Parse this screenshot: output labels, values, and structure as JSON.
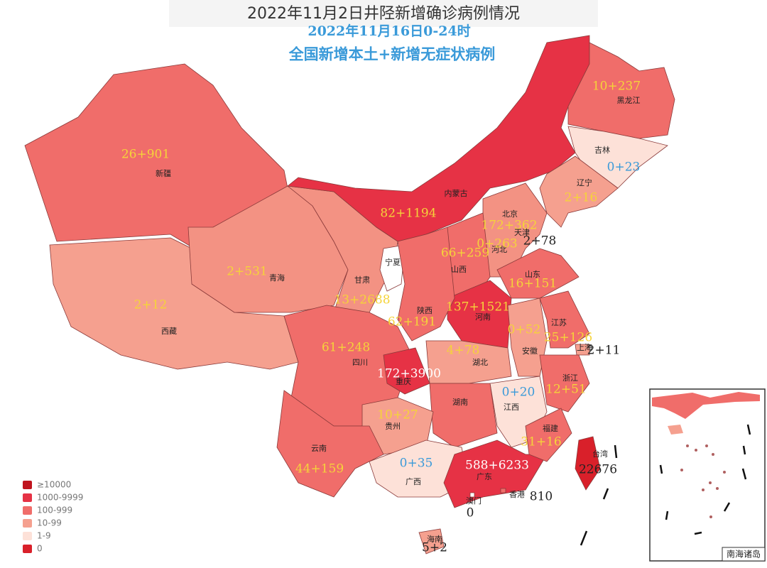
{
  "header": {
    "title": "2022年11月2日井陉新增确诊病例情况"
  },
  "map": {
    "date": "2022年11月16日0-24时",
    "subtitle": "全国新增本土+新增无症状病例",
    "inset_label": "南海诸岛",
    "legend": [
      {
        "label": "≥10000",
        "color": "#c0141e"
      },
      {
        "label": "1000-9999",
        "color": "#e63245"
      },
      {
        "label": "100-999",
        "color": "#f06d6a"
      },
      {
        "label": "10-99",
        "color": "#f5a08f"
      },
      {
        "label": "1-9",
        "color": "#fde1d8"
      },
      {
        "label": "0",
        "color": "#d9202a"
      }
    ],
    "provinces": [
      {
        "name": "新疆",
        "value": "26+901",
        "color": "#f06d6a",
        "label_color": "#f5d33a"
      },
      {
        "name": "西藏",
        "value": "2+12",
        "color": "#f5a08f",
        "label_color": "#f5d33a"
      },
      {
        "name": "青海",
        "value": "2+531",
        "color": "#f39283",
        "label_color": "#f5d33a"
      },
      {
        "name": "甘肃",
        "value": "13+2688",
        "color": "#f39283",
        "label_color": "#f5d33a"
      },
      {
        "name": "宁夏",
        "color": "#ffffff"
      },
      {
        "name": "内蒙古",
        "value": "82+1194",
        "color": "#e63245",
        "label_color": "#f5d33a"
      },
      {
        "name": "黑龙江",
        "value": "10+237",
        "color": "#f06d6a",
        "label_color": "#f5d33a"
      },
      {
        "name": "吉林",
        "value": "0+23",
        "color": "#fde1d8",
        "label_color": "#3a9ad9"
      },
      {
        "name": "辽宁",
        "value": "2+16",
        "color": "#f5a08f",
        "label_color": "#f5d33a"
      },
      {
        "name": "北京",
        "value": "172+362",
        "color": "#e63245",
        "label_color": "#f5d33a"
      },
      {
        "name": "天津",
        "value": "2+78",
        "color": "#f5a08f",
        "label_color": "#222222"
      },
      {
        "name": "河北",
        "value": "0+263",
        "color": "#f39283",
        "label_color": "#f5d33a"
      },
      {
        "name": "山西",
        "value": "66+259",
        "color": "#f06d6a",
        "label_color": "#f5d33a"
      },
      {
        "name": "山东",
        "value": "16+151",
        "color": "#f06d6a",
        "label_color": "#f5d33a"
      },
      {
        "name": "河南",
        "value": "137+1521",
        "color": "#e63245",
        "label_color": "#f5d33a"
      },
      {
        "name": "陕西",
        "value": "62+191",
        "color": "#f06d6a",
        "label_color": "#f5d33a"
      },
      {
        "name": "四川",
        "value": "61+248",
        "color": "#f06d6a",
        "label_color": "#f5d33a"
      },
      {
        "name": "重庆",
        "value": "172+3900",
        "color": "#e63245",
        "label_color": "#ffffff"
      },
      {
        "name": "湖北",
        "value": "4+78",
        "color": "#f5a08f",
        "label_color": "#f5d33a"
      },
      {
        "name": "安徽",
        "value": "0+52",
        "color": "#f5a08f",
        "label_color": "#f5d33a"
      },
      {
        "name": "江苏",
        "value": "25+126",
        "color": "#f06d6a",
        "label_color": "#f5d33a"
      },
      {
        "name": "上海",
        "value": "2+11",
        "color": "#f5a08f",
        "label_color": "#222222"
      },
      {
        "name": "浙江",
        "value": "12+51",
        "color": "#f06d6a",
        "label_color": "#f5d33a"
      },
      {
        "name": "江西",
        "value": "0+20",
        "color": "#fde1d8",
        "label_color": "#3a9ad9"
      },
      {
        "name": "湖南",
        "color": "#f06d6a"
      },
      {
        "name": "贵州",
        "value": "10+27",
        "color": "#f5a08f",
        "label_color": "#f5d33a"
      },
      {
        "name": "云南",
        "value": "44+159",
        "color": "#f06d6a",
        "label_color": "#f5d33a"
      },
      {
        "name": "广西",
        "value": "0+35",
        "color": "#fde1d8",
        "label_color": "#3a9ad9"
      },
      {
        "name": "广东",
        "value": "588+6233",
        "color": "#e63245",
        "label_color": "#ffffff"
      },
      {
        "name": "福建",
        "value": "31+16",
        "color": "#f06d6a",
        "label_color": "#f5d33a"
      },
      {
        "name": "台湾",
        "value": "22676",
        "color": "#d9202a",
        "label_color": "#222222"
      },
      {
        "name": "香港",
        "value": "810",
        "color": "#f06d6a",
        "label_color": "#222222"
      },
      {
        "name": "澳门",
        "value": "0",
        "color": "#ffffff",
        "label_color": "#222222"
      },
      {
        "name": "海南",
        "value": "5+2",
        "color": "#f5a08f",
        "label_color": "#222222"
      }
    ]
  }
}
